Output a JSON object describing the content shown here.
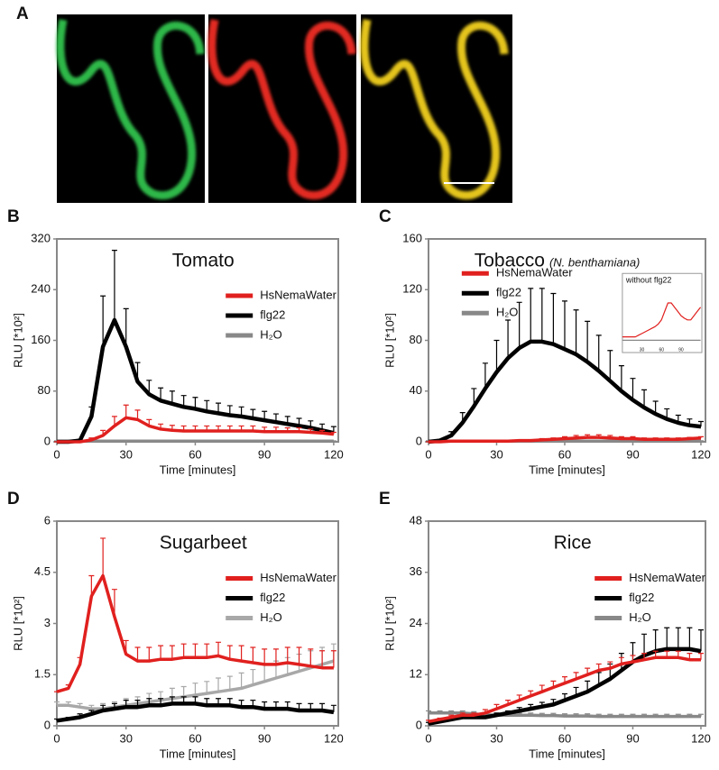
{
  "figure": {
    "panel_label": "A"
  },
  "chart_data": [
    {
      "type": "line",
      "panel": "B",
      "title": "Tomato",
      "x_label": "Time [minutes]",
      "y_label": "RLU [*10²]",
      "x": [
        0,
        5,
        10,
        15,
        20,
        25,
        30,
        35,
        40,
        45,
        50,
        55,
        60,
        65,
        70,
        75,
        80,
        85,
        90,
        95,
        100,
        105,
        110,
        115,
        120
      ],
      "xlim": [
        0,
        122
      ],
      "xticks": [
        0,
        30,
        60,
        90,
        120
      ],
      "ylim": [
        0,
        320
      ],
      "yticks": [
        0,
        80,
        160,
        240,
        320
      ],
      "legend": "right",
      "series": [
        {
          "name": "HsNemaWater",
          "color": "#e0201e",
          "values": [
            0,
            0,
            0,
            3,
            10,
            25,
            38,
            35,
            25,
            20,
            18,
            17,
            17,
            17,
            17,
            17,
            17,
            17,
            16,
            16,
            16,
            16,
            15,
            14,
            12
          ],
          "errors": [
            0,
            0,
            0,
            3,
            8,
            15,
            20,
            15,
            10,
            8,
            8,
            8,
            8,
            8,
            8,
            8,
            8,
            8,
            7,
            7,
            6,
            6,
            5,
            4,
            3
          ]
        },
        {
          "name": "flg22",
          "color": "#000000",
          "values": [
            0,
            0,
            2,
            40,
            150,
            192,
            150,
            95,
            75,
            65,
            60,
            55,
            52,
            48,
            45,
            42,
            40,
            37,
            34,
            31,
            28,
            25,
            22,
            18,
            14
          ],
          "errors": [
            0,
            0,
            2,
            15,
            80,
            110,
            60,
            30,
            22,
            20,
            20,
            18,
            18,
            17,
            16,
            15,
            15,
            14,
            14,
            13,
            12,
            12,
            11,
            10,
            10
          ]
        },
        {
          "name": "H₂O",
          "color": "#888888",
          "values": [
            1,
            1,
            1,
            1,
            1,
            1,
            1,
            1,
            1,
            1,
            1,
            1,
            1,
            1,
            1,
            1,
            1,
            1,
            1,
            1,
            1,
            1,
            1,
            1,
            1
          ],
          "errors": [
            0.5,
            0.5,
            0.5,
            0.5,
            0.5,
            0.5,
            0.5,
            0.5,
            0.5,
            0.5,
            0.5,
            0.5,
            0.5,
            0.5,
            0.5,
            0.5,
            0.5,
            0.5,
            0.5,
            0.5,
            0.5,
            0.5,
            0.5,
            0.5,
            0.5
          ]
        }
      ]
    },
    {
      "type": "line",
      "panel": "C",
      "title": "Tobacco",
      "subtitle": "(N. benthamiana)",
      "x_label": "Time [minutes]",
      "y_label": "RLU [*10²]",
      "x": [
        0,
        5,
        10,
        15,
        20,
        25,
        30,
        35,
        40,
        45,
        50,
        55,
        60,
        65,
        70,
        75,
        80,
        85,
        90,
        95,
        100,
        105,
        110,
        115,
        120
      ],
      "xlim": [
        0,
        122
      ],
      "xticks": [
        0,
        30,
        60,
        90,
        120
      ],
      "ylim": [
        0,
        160
      ],
      "yticks": [
        0,
        40,
        80,
        120,
        160
      ],
      "legend": "upper left",
      "series": [
        {
          "name": "HsNemaWater",
          "color": "#e0201e",
          "values": [
            0,
            0,
            0.5,
            0.5,
            0.5,
            0.5,
            0.5,
            0.5,
            1,
            1,
            1.5,
            2,
            2.5,
            3,
            3.5,
            3.5,
            3,
            2.5,
            2.5,
            2,
            2,
            2,
            2,
            2.5,
            3
          ],
          "errors": [
            0,
            0,
            0.5,
            0.5,
            0.5,
            0.5,
            0.5,
            0.5,
            0.5,
            0.5,
            1,
            1,
            1.5,
            2,
            2,
            2,
            2,
            1.5,
            1.5,
            1,
            1,
            1,
            1,
            1,
            1
          ]
        },
        {
          "name": "flg22",
          "color": "#000000",
          "values": [
            0,
            1,
            5,
            15,
            28,
            42,
            55,
            66,
            74,
            79,
            79,
            77,
            73,
            69,
            63,
            56,
            48,
            40,
            33,
            27,
            22,
            18,
            15,
            13,
            12
          ],
          "errors": [
            0,
            0.5,
            3,
            8,
            14,
            20,
            25,
            30,
            36,
            42,
            42,
            40,
            38,
            35,
            32,
            28,
            24,
            20,
            17,
            14,
            10,
            8,
            6,
            5,
            4
          ]
        },
        {
          "name": "H₂O",
          "color": "#888888",
          "values": [
            0.5,
            0.5,
            0.5,
            0.5,
            0.5,
            0.5,
            0.5,
            0.5,
            0.5,
            0.5,
            0.5,
            0.5,
            0.5,
            0.5,
            0.5,
            0.5,
            0.5,
            0.5,
            0.5,
            0.5,
            0.5,
            0.5,
            0.5,
            0.5,
            0.5
          ],
          "errors": [
            0.3,
            0.3,
            0.3,
            0.3,
            0.3,
            0.3,
            0.3,
            0.3,
            0.3,
            0.3,
            0.3,
            0.3,
            0.3,
            0.3,
            0.3,
            0.3,
            0.3,
            0.3,
            0.3,
            0.3,
            0.3,
            0.3,
            0.3,
            0.3,
            0.3
          ]
        }
      ],
      "inset": {
        "type": "line",
        "title": "without flg22",
        "x": [
          0,
          5,
          10,
          15,
          20,
          25,
          30,
          35,
          40,
          45,
          50,
          55,
          60,
          65,
          70,
          75,
          80,
          85,
          90,
          95,
          100,
          105,
          110,
          115,
          120
        ],
        "xlim": [
          0,
          122
        ],
        "xticks": [
          30,
          60,
          90
        ],
        "ylim": [
          0,
          7
        ],
        "series": [
          {
            "color": "#e0201e",
            "values": [
              1,
              1,
              1,
              1,
              1,
              1.2,
              1.4,
              1.6,
              1.8,
              2,
              2.2,
              2.5,
              3,
              4,
              5,
              5,
              4.5,
              4,
              3.5,
              3.2,
              3,
              3,
              3.5,
              4,
              4.5
            ]
          },
          {
            "color": "#888888",
            "values": [
              0.6,
              0.6,
              0.6,
              0.6,
              0.6,
              0.6,
              0.6,
              0.6,
              0.6,
              0.6,
              0.6,
              0.6,
              0.6,
              0.6,
              0.6,
              0.6,
              0.6,
              0.6,
              0.6,
              0.6,
              0.6,
              0.6,
              0.6,
              0.6,
              0.6
            ]
          }
        ]
      }
    },
    {
      "type": "line",
      "panel": "D",
      "title": "Sugarbeet",
      "x_label": "Time [minutes]",
      "y_label": "RLU [*10²]",
      "x": [
        0,
        5,
        10,
        15,
        20,
        25,
        30,
        35,
        40,
        45,
        50,
        55,
        60,
        65,
        70,
        75,
        80,
        85,
        90,
        95,
        100,
        105,
        110,
        115,
        120
      ],
      "xlim": [
        0,
        122
      ],
      "xticks": [
        0,
        30,
        60,
        90,
        120
      ],
      "ylim": [
        0,
        6
      ],
      "yticks": [
        0,
        1.5,
        3,
        4.5,
        6
      ],
      "legend": "right",
      "series": [
        {
          "name": "HsNemaWater",
          "color": "#e0201e",
          "values": [
            1.0,
            1.1,
            1.8,
            3.8,
            4.4,
            3.2,
            2.1,
            1.9,
            1.9,
            1.95,
            1.95,
            2.0,
            2.0,
            2.0,
            2.05,
            1.95,
            1.9,
            1.85,
            1.8,
            1.8,
            1.85,
            1.8,
            1.75,
            1.7,
            1.7
          ],
          "errors": [
            0,
            0.1,
            0.2,
            0.6,
            1.1,
            0.8,
            0.4,
            0.4,
            0.4,
            0.4,
            0.4,
            0.4,
            0.4,
            0.4,
            0.4,
            0.4,
            0.45,
            0.45,
            0.45,
            0.45,
            0.45,
            0.5,
            0.5,
            0.5,
            0.5
          ]
        },
        {
          "name": "flg22",
          "color": "#000000",
          "values": [
            0.15,
            0.2,
            0.25,
            0.35,
            0.45,
            0.5,
            0.55,
            0.55,
            0.6,
            0.6,
            0.65,
            0.65,
            0.65,
            0.6,
            0.6,
            0.6,
            0.55,
            0.55,
            0.5,
            0.5,
            0.5,
            0.45,
            0.45,
            0.45,
            0.4
          ],
          "errors": [
            0.05,
            0.05,
            0.1,
            0.1,
            0.15,
            0.15,
            0.2,
            0.2,
            0.2,
            0.2,
            0.2,
            0.2,
            0.2,
            0.2,
            0.2,
            0.2,
            0.2,
            0.2,
            0.2,
            0.2,
            0.2,
            0.2,
            0.2,
            0.2,
            0.2
          ]
        },
        {
          "name": "H₂O",
          "color": "#a8a8a8",
          "values": [
            0.6,
            0.6,
            0.55,
            0.5,
            0.5,
            0.55,
            0.6,
            0.65,
            0.7,
            0.75,
            0.8,
            0.85,
            0.9,
            0.95,
            1.0,
            1.05,
            1.1,
            1.2,
            1.3,
            1.4,
            1.5,
            1.6,
            1.7,
            1.8,
            1.9
          ],
          "errors": [
            0.1,
            0.1,
            0.1,
            0.1,
            0.15,
            0.15,
            0.2,
            0.2,
            0.25,
            0.25,
            0.3,
            0.3,
            0.35,
            0.35,
            0.4,
            0.4,
            0.45,
            0.45,
            0.5,
            0.5,
            0.5,
            0.5,
            0.5,
            0.5,
            0.5
          ]
        }
      ]
    },
    {
      "type": "line",
      "panel": "E",
      "title": "Rice",
      "x_label": "Time [minutes]",
      "y_label": "RLU [*10²]",
      "x": [
        0,
        5,
        10,
        15,
        20,
        25,
        30,
        35,
        40,
        45,
        50,
        55,
        60,
        65,
        70,
        75,
        80,
        85,
        90,
        95,
        100,
        105,
        110,
        115,
        120
      ],
      "xlim": [
        0,
        122
      ],
      "xticks": [
        0,
        30,
        60,
        90,
        120
      ],
      "ylim": [
        0,
        48
      ],
      "yticks": [
        0,
        12,
        24,
        36,
        48
      ],
      "legend": "right",
      "series": [
        {
          "name": "HsNemaWater",
          "color": "#e0201e",
          "values": [
            1,
            1.5,
            2,
            2.5,
            2.5,
            3,
            4,
            5,
            6,
            7,
            8,
            9,
            10,
            11,
            12,
            13,
            13.5,
            14.5,
            15,
            15.5,
            16,
            16,
            16,
            15.5,
            15.5
          ],
          "errors": [
            0.3,
            0.3,
            0.5,
            0.5,
            0.5,
            0.8,
            1,
            1,
            1.2,
            1.2,
            1.5,
            1.5,
            1.5,
            1.5,
            1.5,
            1.5,
            1.5,
            1.5,
            1.5,
            1.5,
            1.5,
            1.5,
            1.5,
            1.5,
            1.5
          ]
        },
        {
          "name": "flg22",
          "color": "#000000",
          "values": [
            0.5,
            1,
            1.5,
            2,
            2,
            2,
            2.5,
            3,
            3.5,
            4,
            4.5,
            5,
            6,
            7,
            8,
            9.5,
            11,
            13,
            15,
            16.5,
            17.5,
            18,
            18,
            18,
            17.5
          ],
          "errors": [
            0.3,
            0.3,
            0.3,
            0.3,
            0.3,
            0.3,
            0.5,
            0.5,
            0.8,
            1,
            1,
            1.2,
            1.5,
            2,
            2.5,
            3,
            3.5,
            4,
            4.5,
            5,
            5,
            5,
            5,
            5,
            5
          ]
        },
        {
          "name": "H₂O",
          "color": "#888888",
          "values": [
            3,
            3,
            3,
            3,
            2.8,
            2.6,
            2.5,
            2.5,
            2.5,
            2.5,
            2.4,
            2.4,
            2.3,
            2.3,
            2.3,
            2.2,
            2.2,
            2.2,
            2.2,
            2.2,
            2.2,
            2.2,
            2.2,
            2.2,
            2.2
          ],
          "errors": [
            0.5,
            0.5,
            0.5,
            0.5,
            0.5,
            0.5,
            0.5,
            0.5,
            0.5,
            0.5,
            0.5,
            0.5,
            0.5,
            0.5,
            0.5,
            0.5,
            0.5,
            0.5,
            0.5,
            0.5,
            0.5,
            0.5,
            0.5,
            0.5,
            0.5
          ]
        }
      ]
    }
  ]
}
